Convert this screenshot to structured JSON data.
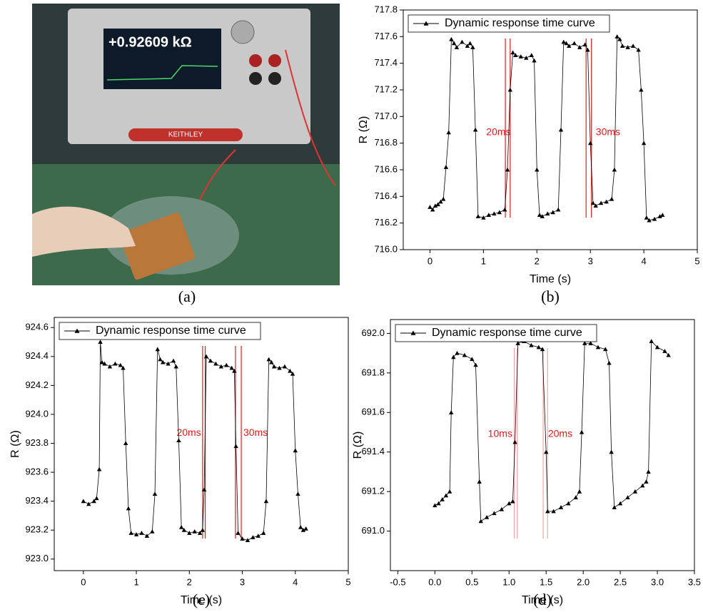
{
  "photo": {
    "caption": "(a)",
    "screen_text": "+0.92609 kΩ",
    "brand": "KEITHLEY"
  },
  "chart_data": [
    {
      "type": "line",
      "caption": "(b)",
      "x_label": "Time (s)",
      "y_label": "R (Ω)",
      "xlim": [
        -0.5,
        5
      ],
      "ylim": [
        716.0,
        717.8
      ],
      "xticks": [
        0,
        1,
        2,
        3,
        4,
        5
      ],
      "yticks": [
        {
          "value": 716.0,
          "label": "716.0"
        },
        716.2,
        716.4,
        716.6,
        716.8,
        {
          "value": 717.0,
          "label": "717.0"
        },
        717.2,
        717.4,
        717.6,
        717.8
      ],
      "ref_lines": [
        1.41,
        1.5,
        2.92,
        3.02
      ],
      "ref_color": "#e31a1c",
      "annotations": [
        {
          "text": "20ms",
          "x": 1.28,
          "y": 716.88
        },
        {
          "text": "30ms",
          "x": 3.33,
          "y": 716.88
        }
      ],
      "x": [
        0,
        0.05,
        0.1,
        0.15,
        0.2,
        0.25,
        0.3,
        0.35,
        0.4,
        0.45,
        0.5,
        0.6,
        0.7,
        0.75,
        0.8,
        0.85,
        0.9,
        1.0,
        1.1,
        1.2,
        1.3,
        1.4,
        1.45,
        1.5,
        1.55,
        1.6,
        1.7,
        1.8,
        1.9,
        1.95,
        2.0,
        2.05,
        2.1,
        2.2,
        2.3,
        2.4,
        2.45,
        2.5,
        2.55,
        2.6,
        2.7,
        2.8,
        2.9,
        2.95,
        3.0,
        3.05,
        3.1,
        3.2,
        3.3,
        3.4,
        3.45,
        3.5,
        3.55,
        3.6,
        3.7,
        3.8,
        3.9,
        3.95,
        4.0,
        4.05,
        4.1,
        4.2,
        4.3,
        4.35
      ],
      "series": [
        {
          "name": "Dynamic response time curve",
          "color": "#000000",
          "values": [
            716.32,
            716.3,
            716.33,
            716.34,
            716.36,
            716.38,
            716.62,
            716.88,
            717.58,
            717.55,
            717.52,
            717.56,
            717.53,
            717.55,
            717.52,
            716.9,
            716.25,
            716.24,
            716.26,
            716.27,
            716.28,
            716.3,
            716.6,
            717.2,
            717.48,
            717.46,
            717.45,
            717.44,
            717.46,
            717.42,
            716.6,
            716.26,
            716.25,
            716.27,
            716.28,
            716.3,
            716.9,
            717.56,
            717.55,
            717.53,
            717.55,
            717.52,
            717.54,
            717.5,
            716.8,
            716.35,
            716.33,
            716.35,
            716.36,
            716.38,
            716.6,
            717.6,
            717.58,
            717.53,
            717.52,
            717.53,
            717.5,
            717.2,
            716.8,
            716.24,
            716.22,
            716.23,
            716.25,
            716.26
          ]
        }
      ]
    },
    {
      "type": "line",
      "caption": "(c)",
      "x_label": "Time (s)",
      "y_label": "R (Ω)",
      "xlim": [
        -0.55,
        5
      ],
      "ylim": [
        922.92,
        924.67
      ],
      "xticks": [
        0,
        1,
        2,
        3,
        4,
        5
      ],
      "yticks": [
        {
          "value": 923.0,
          "label": "923.0"
        },
        923.2,
        923.4,
        923.6,
        923.8,
        {
          "value": 924.0,
          "label": "924.0"
        },
        924.2,
        924.4,
        924.6
      ],
      "ref_lines": [
        2.25,
        2.3,
        2.87,
        2.98
      ],
      "ref_color": "#e31a1c",
      "annotations": [
        {
          "text": "20ms",
          "x": 1.99,
          "y": 923.87
        },
        {
          "text": "30ms",
          "x": 3.25,
          "y": 923.87
        }
      ],
      "x": [
        0,
        0.1,
        0.2,
        0.25,
        0.3,
        0.32,
        0.35,
        0.4,
        0.5,
        0.6,
        0.7,
        0.75,
        0.8,
        0.85,
        0.9,
        1.0,
        1.1,
        1.2,
        1.3,
        1.35,
        1.4,
        1.45,
        1.5,
        1.6,
        1.7,
        1.75,
        1.8,
        1.85,
        1.9,
        2.0,
        2.1,
        2.2,
        2.25,
        2.28,
        2.32,
        2.4,
        2.5,
        2.6,
        2.7,
        2.8,
        2.85,
        2.88,
        2.92,
        3.0,
        3.1,
        3.2,
        3.3,
        3.4,
        3.45,
        3.5,
        3.55,
        3.6,
        3.7,
        3.8,
        3.9,
        3.95,
        4.0,
        4.05,
        4.1,
        4.15,
        4.2
      ],
      "series": [
        {
          "name": "Dynamic response time curve",
          "color": "#000000",
          "values": [
            923.4,
            923.38,
            923.4,
            923.42,
            923.62,
            924.5,
            924.36,
            924.35,
            924.33,
            924.35,
            924.34,
            924.32,
            923.8,
            923.35,
            923.18,
            923.17,
            923.18,
            923.16,
            923.19,
            923.45,
            924.45,
            924.38,
            924.36,
            924.35,
            924.37,
            924.33,
            923.82,
            923.22,
            923.2,
            923.18,
            923.19,
            923.18,
            923.2,
            923.48,
            924.4,
            924.37,
            924.35,
            924.33,
            924.34,
            924.32,
            924.3,
            923.78,
            923.18,
            923.14,
            923.13,
            923.15,
            923.16,
            923.18,
            923.4,
            924.38,
            924.36,
            924.33,
            924.32,
            924.33,
            924.3,
            924.28,
            923.75,
            923.45,
            923.22,
            923.2,
            923.21
          ]
        }
      ]
    },
    {
      "type": "line",
      "caption": "(d)",
      "x_label": "Time (s)",
      "y_label": "R (Ω)",
      "xlim": [
        -0.6,
        3.5
      ],
      "ylim": [
        690.8,
        692.07
      ],
      "xticks": [
        -0.5,
        {
          "value": 0,
          "label": "0.0"
        },
        0.5,
        {
          "value": 1,
          "label": "1.0"
        },
        1.5,
        {
          "value": 2,
          "label": "2.0"
        },
        2.5,
        {
          "value": 3,
          "label": "3.0"
        },
        3.5
      ],
      "yticks": [
        {
          "value": 691.0,
          "label": "691.0"
        },
        691.2,
        691.4,
        691.6,
        691.8,
        {
          "value": 692.0,
          "label": "692.0"
        }
      ],
      "ref_lines": [
        1.07,
        1.11,
        1.46,
        1.52
      ],
      "ref_color": "#f4a3a3",
      "annotations": [
        {
          "text": "10ms",
          "x": 0.88,
          "y": 691.49
        },
        {
          "text": "20ms",
          "x": 1.69,
          "y": 691.49
        }
      ],
      "x": [
        0,
        0.05,
        0.1,
        0.15,
        0.2,
        0.22,
        0.25,
        0.3,
        0.4,
        0.5,
        0.55,
        0.6,
        0.62,
        0.7,
        0.8,
        0.9,
        1.0,
        1.05,
        1.08,
        1.12,
        1.2,
        1.3,
        1.4,
        1.45,
        1.5,
        1.52,
        1.6,
        1.7,
        1.8,
        1.9,
        1.95,
        1.98,
        2.02,
        2.1,
        2.2,
        2.3,
        2.35,
        2.38,
        2.42,
        2.5,
        2.6,
        2.7,
        2.8,
        2.85,
        2.88,
        2.92,
        3.0,
        3.1,
        3.15
      ],
      "series": [
        {
          "name": "Dynamic response time curve",
          "color": "#000000",
          "values": [
            691.13,
            691.14,
            691.16,
            691.18,
            691.2,
            691.6,
            691.88,
            691.9,
            691.89,
            691.87,
            691.84,
            691.25,
            691.05,
            691.07,
            691.09,
            691.11,
            691.14,
            691.15,
            691.45,
            691.95,
            691.96,
            691.94,
            691.93,
            691.92,
            691.4,
            691.1,
            691.1,
            691.12,
            691.14,
            691.17,
            691.2,
            691.5,
            691.95,
            691.95,
            691.93,
            691.92,
            691.85,
            691.4,
            691.12,
            691.14,
            691.17,
            691.2,
            691.23,
            691.25,
            691.3,
            691.96,
            691.93,
            691.91,
            691.89
          ]
        }
      ]
    }
  ]
}
